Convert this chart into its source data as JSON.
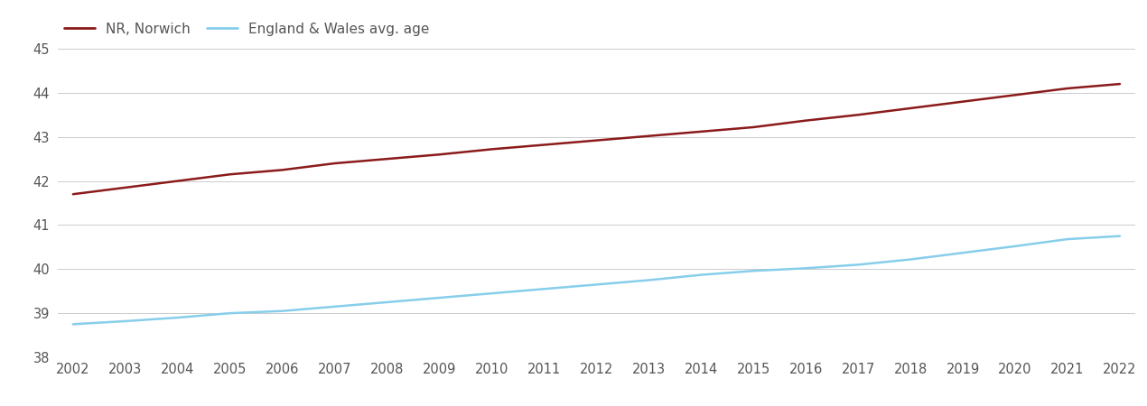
{
  "years": [
    2002,
    2003,
    2004,
    2005,
    2006,
    2007,
    2008,
    2009,
    2010,
    2011,
    2012,
    2013,
    2014,
    2015,
    2016,
    2017,
    2018,
    2019,
    2020,
    2021,
    2022
  ],
  "norwich": [
    41.7,
    41.85,
    42.0,
    42.15,
    42.25,
    42.4,
    42.5,
    42.6,
    42.72,
    42.82,
    42.92,
    43.02,
    43.12,
    43.22,
    43.37,
    43.5,
    43.65,
    43.8,
    43.95,
    44.1,
    44.2
  ],
  "england_wales": [
    38.75,
    38.82,
    38.9,
    39.0,
    39.05,
    39.15,
    39.25,
    39.35,
    39.45,
    39.55,
    39.65,
    39.75,
    39.87,
    39.96,
    40.02,
    40.1,
    40.22,
    40.37,
    40.52,
    40.68,
    40.75
  ],
  "norwich_color": "#8b1a1a",
  "england_wales_color": "#87CEEB",
  "legend_label_norwich": "NR, Norwich",
  "legend_label_ew": "England & Wales avg. age",
  "ylim": [
    38,
    45
  ],
  "yticks": [
    38,
    39,
    40,
    41,
    42,
    43,
    44,
    45
  ],
  "background_color": "#ffffff",
  "grid_color": "#cccccc",
  "line_width": 1.8,
  "tick_label_color": "#555555",
  "tick_label_fontsize": 10.5,
  "legend_fontsize": 11
}
